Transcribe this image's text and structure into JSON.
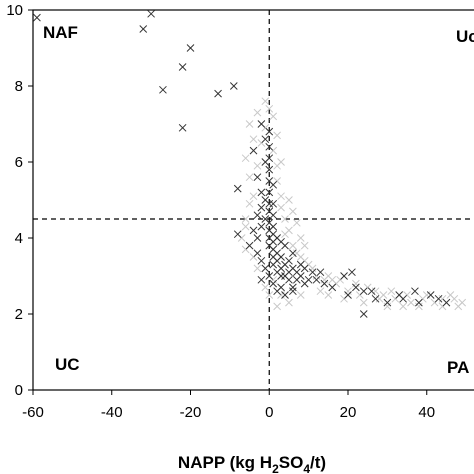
{
  "chart_data": {
    "type": "scatter",
    "xlabel": {
      "prefix": "NAPP (kg H",
      "sub1": "2",
      "mid": "SO",
      "sub2": "4",
      "suffix": "/t)"
    },
    "ylabel": "",
    "xlim": [
      -60,
      52
    ],
    "ylim": [
      0,
      10
    ],
    "x_ticks": [
      -60,
      -40,
      -20,
      0,
      20,
      40
    ],
    "y_ticks": [
      0,
      2,
      4,
      6,
      8,
      10
    ],
    "threshold_lines": {
      "x": 0,
      "y": 4.5,
      "style": "dashed"
    },
    "quadrant_labels": [
      {
        "text": "NAF",
        "position": "top-left"
      },
      {
        "text": "Uc",
        "position": "top-right"
      },
      {
        "text": "UC",
        "position": "bottom-left"
      },
      {
        "text": "PA",
        "position": "bottom-right"
      }
    ],
    "marker": "x",
    "series": [
      {
        "color": "#333333",
        "points": [
          [
            -59,
            9.8
          ],
          [
            -30,
            9.9
          ],
          [
            -32,
            9.5
          ],
          [
            -20,
            9.0
          ],
          [
            -22,
            8.5
          ],
          [
            -27,
            7.9
          ],
          [
            -13,
            7.8
          ],
          [
            -9,
            8.0
          ],
          [
            -22,
            6.9
          ],
          [
            -8,
            4.1
          ],
          [
            -8,
            5.3
          ],
          [
            -4,
            6.3
          ],
          [
            -2,
            7.0
          ],
          [
            -1,
            6.6
          ],
          [
            -1,
            6.0
          ],
          [
            -3,
            5.6
          ],
          [
            -2,
            5.2
          ],
          [
            -1,
            5.0
          ],
          [
            -2,
            4.8
          ],
          [
            -3,
            4.6
          ],
          [
            -1,
            4.5
          ],
          [
            -2,
            4.3
          ],
          [
            -4,
            4.2
          ],
          [
            -3,
            4.0
          ],
          [
            -5,
            3.8
          ],
          [
            -3,
            3.6
          ],
          [
            -2,
            3.4
          ],
          [
            -1,
            3.2
          ],
          [
            0,
            6.8
          ],
          [
            0,
            6.4
          ],
          [
            0,
            6.1
          ],
          [
            0,
            5.8
          ],
          [
            0,
            5.5
          ],
          [
            0,
            5.2
          ],
          [
            0,
            4.9
          ],
          [
            0,
            4.7
          ],
          [
            0,
            4.4
          ],
          [
            0,
            4.2
          ],
          [
            0,
            4.0
          ],
          [
            0,
            3.8
          ],
          [
            1,
            5.4
          ],
          [
            1,
            4.9
          ],
          [
            1,
            4.6
          ],
          [
            1,
            4.3
          ],
          [
            1,
            4.1
          ],
          [
            1,
            3.9
          ],
          [
            1,
            3.7
          ],
          [
            1,
            3.5
          ],
          [
            1,
            3.3
          ],
          [
            2,
            4.0
          ],
          [
            2,
            3.6
          ],
          [
            2,
            3.4
          ],
          [
            2,
            3.1
          ],
          [
            3,
            3.9
          ],
          [
            3,
            3.5
          ],
          [
            3,
            3.2
          ],
          [
            3,
            3.0
          ],
          [
            4,
            3.8
          ],
          [
            4,
            3.3
          ],
          [
            4,
            3.0
          ],
          [
            5,
            3.4
          ],
          [
            5,
            3.1
          ],
          [
            5,
            2.9
          ],
          [
            6,
            3.6
          ],
          [
            6,
            3.2
          ],
          [
            6,
            2.7
          ],
          [
            7,
            3.1
          ],
          [
            7,
            2.9
          ],
          [
            8,
            3.3
          ],
          [
            8,
            3.0
          ],
          [
            9,
            3.2
          ],
          [
            9,
            2.8
          ],
          [
            10,
            2.9
          ],
          [
            11,
            3.1
          ],
          [
            12,
            2.9
          ],
          [
            13,
            3.1
          ],
          [
            14,
            2.8
          ],
          [
            16,
            2.7
          ],
          [
            19,
            3.0
          ],
          [
            21,
            3.1
          ],
          [
            22,
            2.7
          ],
          [
            24,
            2.6
          ],
          [
            24,
            2.0
          ],
          [
            26,
            2.6
          ],
          [
            30,
            2.3
          ],
          [
            33,
            2.5
          ],
          [
            34,
            2.4
          ],
          [
            37,
            2.6
          ],
          [
            38,
            2.3
          ],
          [
            41,
            2.5
          ],
          [
            43,
            2.4
          ],
          [
            1,
            2.8
          ],
          [
            2,
            2.6
          ],
          [
            4,
            2.5
          ],
          [
            6,
            2.6
          ],
          [
            -2,
            2.9
          ],
          [
            0,
            3.0
          ],
          [
            3,
            2.7
          ],
          [
            20,
            2.5
          ],
          [
            27,
            2.4
          ],
          [
            45,
            2.3
          ]
        ]
      },
      {
        "color": "#c8c8c8",
        "points": [
          [
            -3,
            7.3
          ],
          [
            -1,
            7.6
          ],
          [
            1,
            7.2
          ],
          [
            -5,
            7.0
          ],
          [
            -4,
            6.6
          ],
          [
            -6,
            6.1
          ],
          [
            -3,
            5.9
          ],
          [
            1,
            6.3
          ],
          [
            2,
            5.9
          ],
          [
            -5,
            5.6
          ],
          [
            2,
            5.5
          ],
          [
            3,
            5.1
          ],
          [
            -4,
            5.1
          ],
          [
            3,
            4.8
          ],
          [
            -5,
            4.9
          ],
          [
            4,
            4.5
          ],
          [
            5,
            4.2
          ],
          [
            -6,
            4.5
          ],
          [
            -6,
            4.3
          ],
          [
            4,
            4.1
          ],
          [
            6,
            3.8
          ],
          [
            7,
            3.6
          ],
          [
            8,
            3.5
          ],
          [
            9,
            3.4
          ],
          [
            10,
            3.3
          ],
          [
            11,
            3.2
          ],
          [
            12,
            3.0
          ],
          [
            14,
            2.9
          ],
          [
            15,
            3.0
          ],
          [
            16,
            2.9
          ],
          [
            17,
            2.8
          ],
          [
            18,
            2.9
          ],
          [
            20,
            2.6
          ],
          [
            22,
            2.8
          ],
          [
            23,
            2.5
          ],
          [
            25,
            2.7
          ],
          [
            27,
            2.6
          ],
          [
            28,
            2.4
          ],
          [
            29,
            2.5
          ],
          [
            31,
            2.6
          ],
          [
            32,
            2.4
          ],
          [
            35,
            2.5
          ],
          [
            36,
            2.3
          ],
          [
            39,
            2.4
          ],
          [
            40,
            2.5
          ],
          [
            42,
            2.3
          ],
          [
            44,
            2.4
          ],
          [
            46,
            2.5
          ],
          [
            47,
            2.4
          ],
          [
            49,
            2.3
          ],
          [
            -1,
            6.9
          ],
          [
            0,
            7.4
          ],
          [
            2,
            6.7
          ],
          [
            -2,
            6.5
          ],
          [
            3,
            6.0
          ],
          [
            5,
            5.0
          ],
          [
            6,
            4.7
          ],
          [
            7,
            4.4
          ],
          [
            8,
            4.0
          ],
          [
            9,
            3.8
          ],
          [
            -7,
            4.0
          ],
          [
            -6,
            3.7
          ],
          [
            -4,
            3.5
          ],
          [
            -3,
            3.2
          ],
          [
            1,
            2.9
          ],
          [
            3,
            2.5
          ],
          [
            5,
            2.3
          ],
          [
            -1,
            2.7
          ],
          [
            0,
            2.5
          ],
          [
            8,
            2.5
          ],
          [
            13,
            2.6
          ],
          [
            15,
            2.5
          ],
          [
            19,
            2.4
          ],
          [
            24,
            2.3
          ],
          [
            30,
            2.2
          ],
          [
            34,
            2.2
          ],
          [
            38,
            2.2
          ],
          [
            44,
            2.2
          ],
          [
            48,
            2.2
          ],
          [
            2,
            2.2
          ]
        ]
      }
    ]
  }
}
